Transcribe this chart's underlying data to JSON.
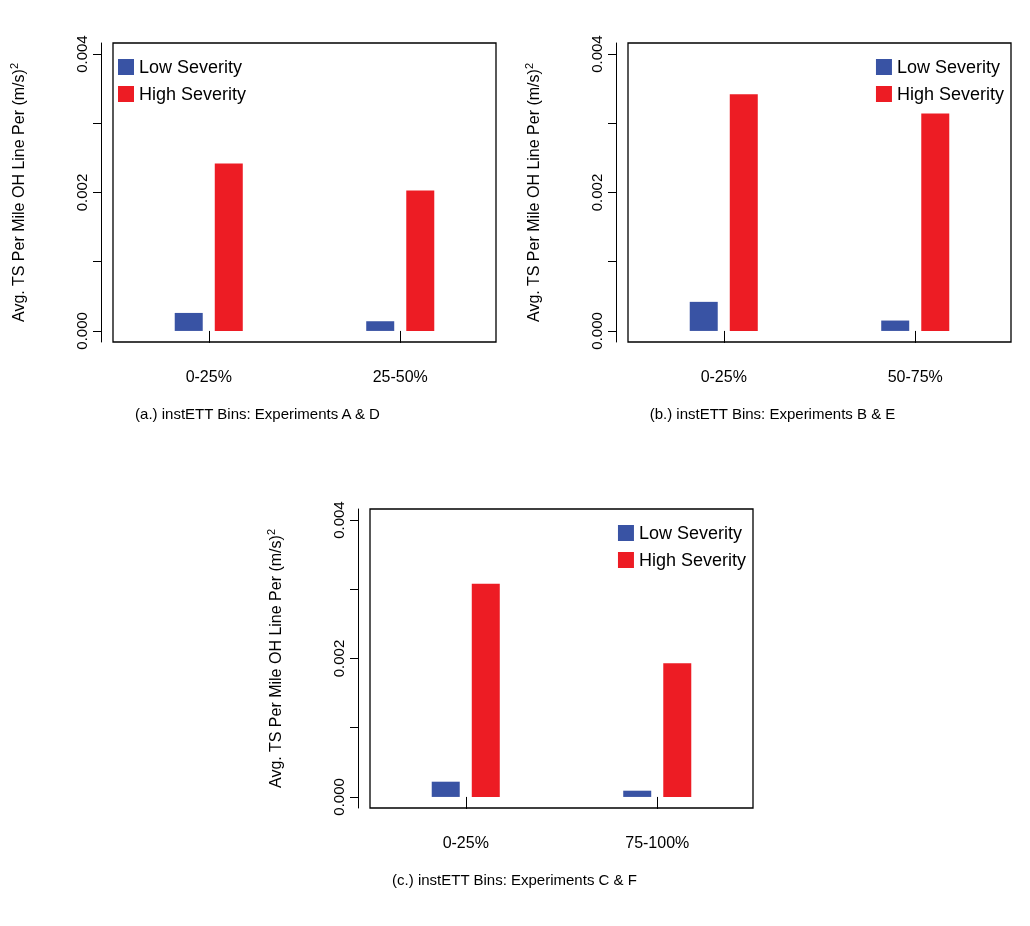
{
  "chart_data": [
    {
      "type": "bar",
      "title": "(a.) instETT Bins: Experiments A & D",
      "ylabel": "Avg. TS Per Mile OH Line Per (m/s)$^{2}$",
      "categories": [
        "0-25%",
        "25-50%"
      ],
      "series": [
        {
          "name": "Low Severity",
          "color": "#3953a4",
          "values": [
            0.00026,
            0.00014
          ]
        },
        {
          "name": "High Severity",
          "color": "#ed1c24",
          "values": [
            0.00242,
            0.00203
          ]
        }
      ],
      "ylim": [
        -0.00016,
        0.00416
      ],
      "yticks": [
        {
          "value": 0,
          "label": "0.000"
        },
        {
          "value": 0.001,
          "label": null
        },
        {
          "value": 0.002,
          "label": "0.002"
        },
        {
          "value": 0.003,
          "label": null
        },
        {
          "value": 0.004,
          "label": "0.004"
        }
      ],
      "grid": false,
      "legend": "top left"
    },
    {
      "type": "bar",
      "title": "(b.) instETT Bins: Experiments B & E",
      "ylabel": "Avg. TS Per Mile OH Line Per (m/s)$^{2}$",
      "categories": [
        "0-25%",
        "50-75%"
      ],
      "series": [
        {
          "name": "Low Severity",
          "color": "#3953a4",
          "values": [
            0.00042,
            0.00015
          ]
        },
        {
          "name": "High Severity",
          "color": "#ed1c24",
          "values": [
            0.00342,
            0.00314
          ]
        }
      ],
      "ylim": [
        -0.00016,
        0.00416
      ],
      "yticks": [
        {
          "value": 0,
          "label": "0.000"
        },
        {
          "value": 0.001,
          "label": null
        },
        {
          "value": 0.002,
          "label": "0.002"
        },
        {
          "value": 0.003,
          "label": null
        },
        {
          "value": 0.004,
          "label": "0.004"
        }
      ],
      "grid": false,
      "legend": "top right"
    },
    {
      "type": "bar",
      "title": "(c.) instETT Bins: Experiments C & F",
      "ylabel": "Avg. TS Per Mile OH Line Per (m/s)$^{2}$",
      "categories": [
        "0-25%",
        "75-100%"
      ],
      "series": [
        {
          "name": "Low Severity",
          "color": "#3953a4",
          "values": [
            0.00022,
            9e-05
          ]
        },
        {
          "name": "High Severity",
          "color": "#ed1c24",
          "values": [
            0.00308,
            0.00193
          ]
        }
      ],
      "ylim": [
        -0.00016,
        0.00416
      ],
      "yticks": [
        {
          "value": 0,
          "label": "0.000"
        },
        {
          "value": 0.001,
          "label": null
        },
        {
          "value": 0.002,
          "label": "0.002"
        },
        {
          "value": 0.003,
          "label": null
        },
        {
          "value": 0.004,
          "label": "0.004"
        }
      ],
      "grid": false,
      "legend": "top right"
    }
  ]
}
